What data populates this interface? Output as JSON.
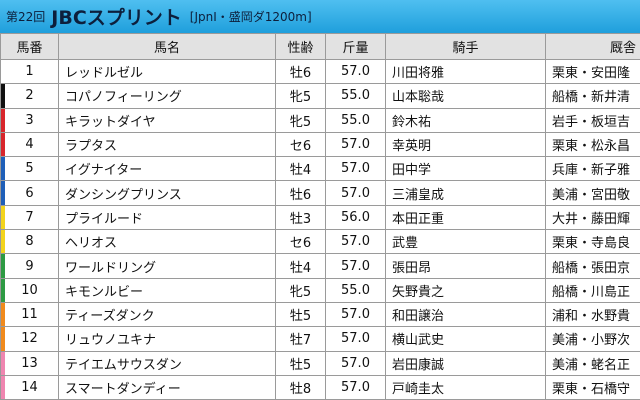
{
  "header": {
    "round": "第22回",
    "title": "JBCスプリント",
    "subtitle": "[JpnI・盛岡ダ1200m]"
  },
  "table": {
    "columns": [
      "馬番",
      "馬名",
      "性齢",
      "斤量",
      "騎手",
      "厩舎"
    ],
    "rows": [
      [
        1,
        "レッドルゼル",
        "牡6",
        "57.0",
        "川田将雅",
        "栗東・安田隆"
      ],
      [
        2,
        "コパノフィーリング",
        "牝5",
        "55.0",
        "山本聡哉",
        "船橋・新井清"
      ],
      [
        3,
        "キラットダイヤ",
        "牝5",
        "55.0",
        "鈴木祐",
        "岩手・板垣吉"
      ],
      [
        4,
        "ラプタス",
        "セ6",
        "57.0",
        "幸英明",
        "栗東・松永昌"
      ],
      [
        5,
        "イグナイター",
        "牡4",
        "57.0",
        "田中学",
        "兵庫・新子雅"
      ],
      [
        6,
        "ダンシングプリンス",
        "牡6",
        "57.0",
        "三浦皇成",
        "美浦・宮田敬"
      ],
      [
        7,
        "プライルード",
        "牡3",
        "56.0",
        "本田正重",
        "大井・藤田輝"
      ],
      [
        8,
        "ヘリオス",
        "セ6",
        "57.0",
        "武豊",
        "栗東・寺島良"
      ],
      [
        9,
        "ワールドリング",
        "牡4",
        "57.0",
        "張田昂",
        "船橋・張田京"
      ],
      [
        10,
        "キモンルビー",
        "牝5",
        "55.0",
        "矢野貴之",
        "船橋・川島正"
      ],
      [
        11,
        "ティーズダンク",
        "牡5",
        "57.0",
        "和田譲治",
        "浦和・水野貴"
      ],
      [
        12,
        "リュウノユキナ",
        "牡7",
        "57.0",
        "横山武史",
        "美浦・小野次"
      ],
      [
        13,
        "テイエムサウスダン",
        "牡5",
        "57.0",
        "岩田康誠",
        "美浦・蛯名正"
      ],
      [
        14,
        "スマートダンディー",
        "牡8",
        "57.0",
        "戸崎圭太",
        "栗東・石橋守"
      ]
    ]
  }
}
